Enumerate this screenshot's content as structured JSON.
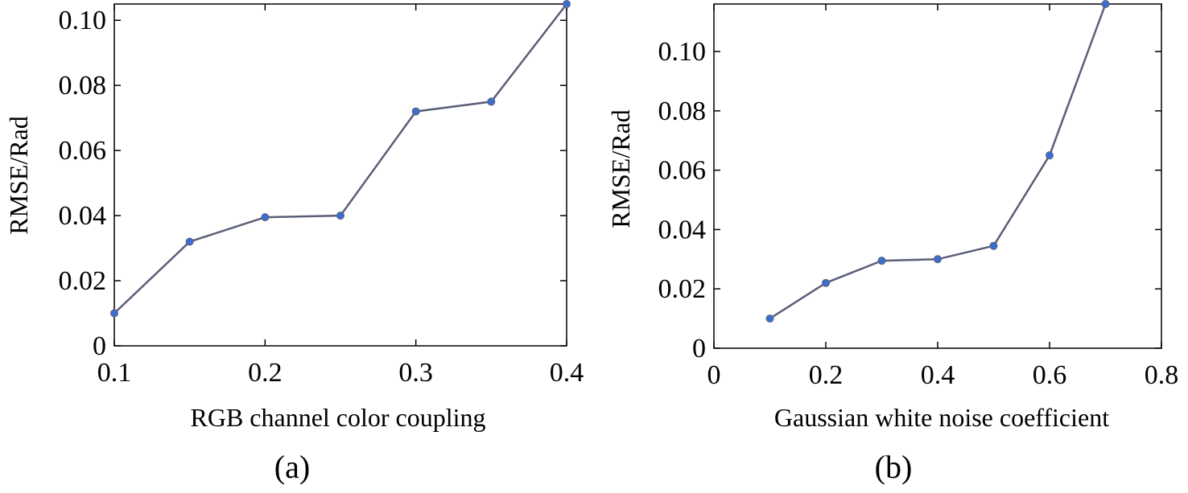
{
  "line_color": "#5a5f78",
  "marker_color": "#3a6fd0",
  "chart_data": [
    {
      "type": "line",
      "caption": "(a)",
      "xlabel": "RGB channel color coupling",
      "ylabel": "RMSE/Rad",
      "xlim": [
        0.1,
        0.4
      ],
      "ylim": [
        0,
        0.105
      ],
      "xticks": [
        0.1,
        0.2,
        0.3,
        0.4
      ],
      "xtick_labels": [
        "0.1",
        "0.2",
        "0.3",
        "0.4"
      ],
      "yticks": [
        0,
        0.02,
        0.04,
        0.06,
        0.08,
        0.1
      ],
      "ytick_labels": [
        "0",
        "0.02",
        "0.04",
        "0.06",
        "0.08",
        "0.10"
      ],
      "grid": false,
      "x": [
        0.1,
        0.15,
        0.2,
        0.25,
        0.3,
        0.35,
        0.4
      ],
      "y": [
        0.01,
        0.032,
        0.0395,
        0.04,
        0.072,
        0.075,
        0.105
      ]
    },
    {
      "type": "line",
      "caption": "(b)",
      "xlabel": "Gaussian white noise coefficient",
      "ylabel": "RMSE/Rad",
      "xlim": [
        0,
        0.8
      ],
      "ylim": [
        0,
        0.116
      ],
      "xticks": [
        0,
        0.2,
        0.4,
        0.6,
        0.8
      ],
      "xtick_labels": [
        "0",
        "0.2",
        "0.4",
        "0.6",
        "0.8"
      ],
      "yticks": [
        0,
        0.02,
        0.04,
        0.06,
        0.08,
        0.1
      ],
      "ytick_labels": [
        "0",
        "0.02",
        "0.04",
        "0.06",
        "0.08",
        "0.10"
      ],
      "grid": false,
      "x": [
        0.1,
        0.2,
        0.3,
        0.4,
        0.5,
        0.6,
        0.7
      ],
      "y": [
        0.01,
        0.022,
        0.0295,
        0.03,
        0.0345,
        0.065,
        0.116
      ]
    }
  ]
}
